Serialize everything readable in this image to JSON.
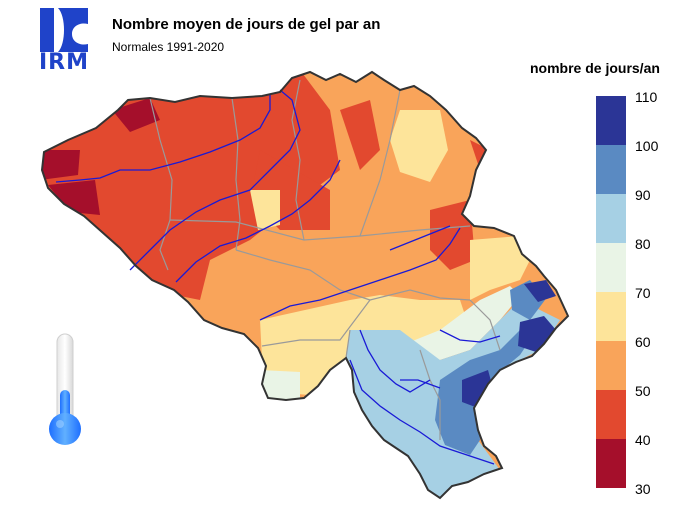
{
  "logo": {
    "text": "IRM",
    "color": "#1f43c9"
  },
  "title": "Nombre moyen de jours de gel par an",
  "subtitle": "Normales 1991-2020",
  "legend": {
    "title": "nombre de jours/an",
    "ticks": [
      "110",
      "100",
      "90",
      "80",
      "70",
      "60",
      "50",
      "40",
      "30"
    ],
    "bins": [
      {
        "from": 100,
        "to": 110,
        "color": "#2b3596"
      },
      {
        "from": 90,
        "to": 100,
        "color": "#5a8ac2"
      },
      {
        "from": 80,
        "to": 90,
        "color": "#a6d0e4"
      },
      {
        "from": 70,
        "to": 80,
        "color": "#e9f4e6"
      },
      {
        "from": 60,
        "to": 70,
        "color": "#fde49a"
      },
      {
        "from": 50,
        "to": 60,
        "color": "#f9a45a"
      },
      {
        "from": 40,
        "to": 50,
        "color": "#e2492f"
      },
      {
        "from": 30,
        "to": 40,
        "color": "#a50f2b"
      }
    ]
  },
  "map": {
    "river_color": "#1a1ad6",
    "border_color": "#9a9a9a",
    "outline_color": "#333333"
  },
  "thermometer": {
    "icon": "thermometer-icon",
    "color": "#2c86ff"
  }
}
